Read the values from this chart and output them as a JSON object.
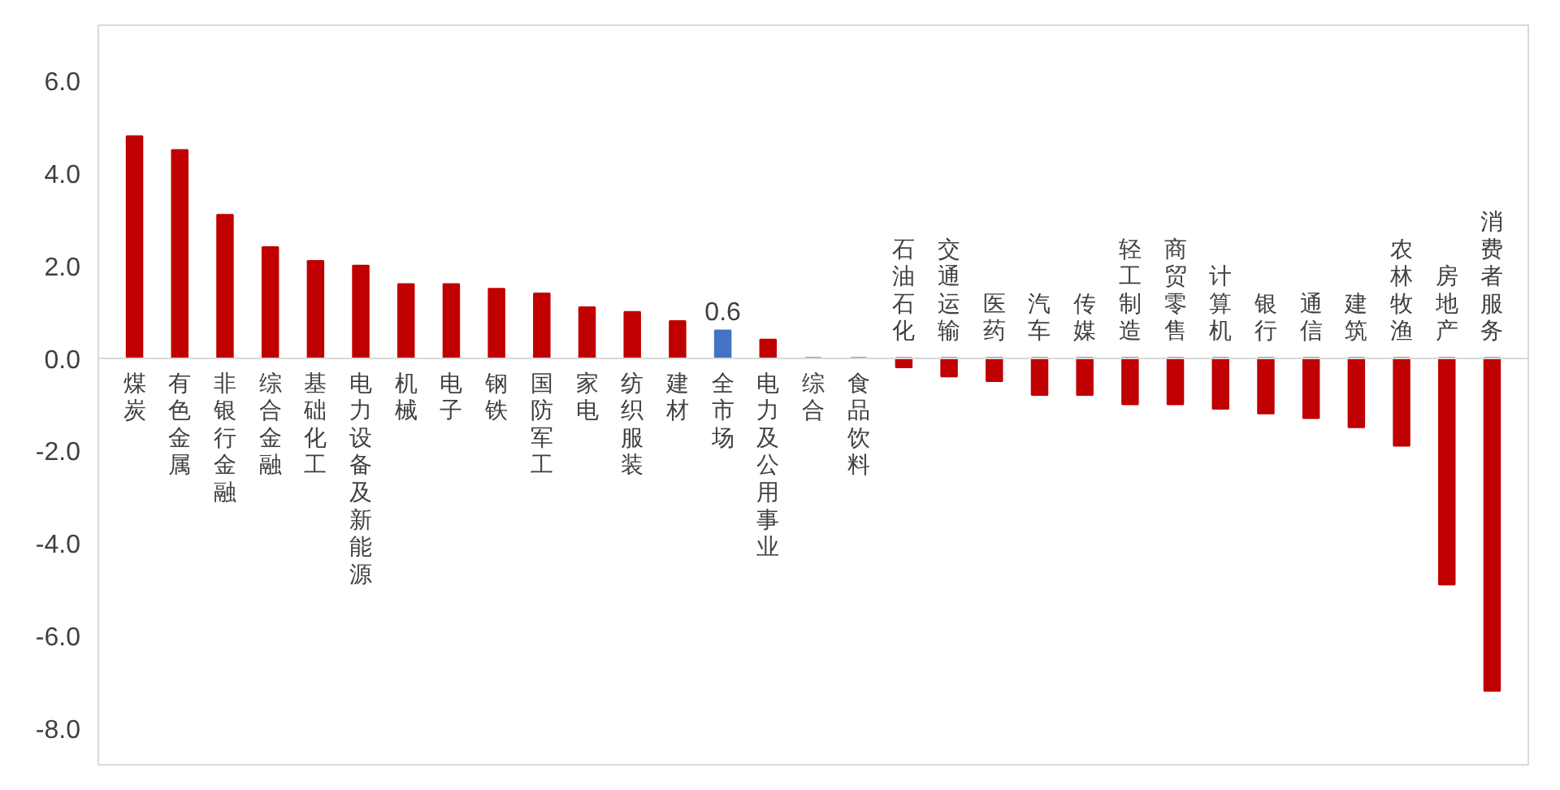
{
  "chart_data": {
    "type": "bar",
    "categories": [
      "煤炭",
      "有色金属",
      "非银行金融",
      "综合金融",
      "基础化工",
      "电力设备及新能源",
      "机械",
      "电子",
      "钢铁",
      "国防军工",
      "家电",
      "纺织服装",
      "建材",
      "全市场",
      "电力及公用事业",
      "综合",
      "食品饮料",
      "石油石化",
      "交通运输",
      "医药",
      "汽车",
      "传媒",
      "轻工制造",
      "商贸零售",
      "计算机",
      "银行",
      "通信",
      "建筑",
      "农林牧渔",
      "房地产",
      "消费者服务"
    ],
    "values": [
      4.8,
      4.5,
      3.1,
      2.4,
      2.1,
      2.0,
      1.6,
      1.6,
      1.5,
      1.4,
      1.1,
      1.0,
      0.8,
      0.6,
      0.4,
      0.0,
      0.0,
      -0.2,
      -0.4,
      -0.5,
      -0.8,
      -0.8,
      -1.0,
      -1.0,
      -1.1,
      -1.2,
      -1.3,
      -1.5,
      -1.9,
      -4.9,
      -7.2
    ],
    "colors": [
      "#c00000",
      "#c00000",
      "#c00000",
      "#c00000",
      "#c00000",
      "#c00000",
      "#c00000",
      "#c00000",
      "#c00000",
      "#c00000",
      "#c00000",
      "#c00000",
      "#c00000",
      "#4472c4",
      "#c00000",
      "#c00000",
      "#c00000",
      "#c00000",
      "#c00000",
      "#c00000",
      "#c00000",
      "#c00000",
      "#c00000",
      "#c00000",
      "#c00000",
      "#c00000",
      "#c00000",
      "#c00000",
      "#c00000",
      "#c00000",
      "#c00000"
    ],
    "value_labels": [
      null,
      null,
      null,
      null,
      null,
      null,
      null,
      null,
      null,
      null,
      null,
      null,
      null,
      "0.6",
      null,
      null,
      null,
      null,
      null,
      null,
      null,
      null,
      null,
      null,
      null,
      null,
      null,
      null,
      null,
      null,
      null
    ],
    "ylim": [
      -8.8,
      7.2
    ],
    "yticks": [
      {
        "value": 6,
        "label": "6.0"
      },
      {
        "value": 4,
        "label": "4.0"
      },
      {
        "value": 2,
        "label": "2.0"
      },
      {
        "value": 0,
        "label": "0.0"
      },
      {
        "value": -2,
        "label": "-2.0"
      },
      {
        "value": -4,
        "label": "-4.0"
      },
      {
        "value": -6,
        "label": "-6.0"
      },
      {
        "value": -8,
        "label": "-8.0"
      }
    ],
    "grid": false
  }
}
